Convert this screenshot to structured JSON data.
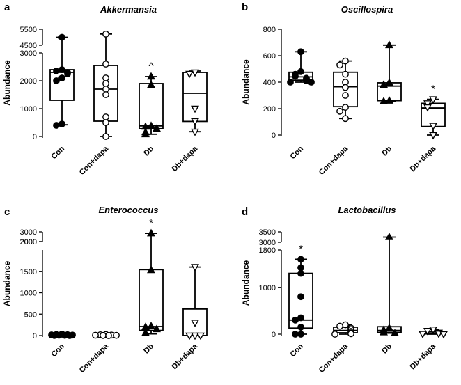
{
  "chart_data": [
    {
      "type": "box",
      "panel": "a",
      "title": "Akkermansia",
      "ylabel": "Abundance",
      "categories": [
        "Con",
        "Con+dapa",
        "Db",
        "Db+dapa"
      ],
      "axis_segments": [
        {
          "range": [
            -100,
            3000
          ],
          "ticks": [
            0,
            1000,
            2000,
            3000
          ],
          "tick_labels": [
            "0",
            "1000",
            "2000",
            "3000"
          ]
        },
        {
          "range": [
            4400,
            5600
          ],
          "ticks": [
            4500,
            5500
          ],
          "tick_labels": [
            "4500",
            "5500"
          ]
        }
      ],
      "annotations": [
        "",
        "",
        "^",
        ""
      ],
      "series": [
        {
          "name": "Con",
          "marker": "circle-filled",
          "whisker_low": 420,
          "q1": 1300,
          "median": 2300,
          "q3": 2400,
          "whisker_high": 5000,
          "points": [
            5000,
            2400,
            2350,
            2300,
            2250,
            2100,
            2000,
            450,
            400
          ]
        },
        {
          "name": "Con+dapa",
          "marker": "circle-open",
          "whisker_low": 0,
          "q1": 550,
          "median": 1700,
          "q3": 2550,
          "whisker_high": 5200,
          "points": [
            5200,
            2600,
            2100,
            1900,
            1700,
            1500,
            700,
            500,
            0
          ]
        },
        {
          "name": "Db",
          "marker": "triangle-up-filled",
          "whisker_low": 80,
          "q1": 280,
          "median": 380,
          "q3": 1900,
          "whisker_high": 2150,
          "points": [
            2150,
            1850,
            380,
            350,
            280,
            150,
            80
          ]
        },
        {
          "name": "Db+dapa",
          "marker": "triangle-down-open",
          "whisker_low": 170,
          "q1": 540,
          "median": 1550,
          "q3": 2300,
          "whisker_high": 2350,
          "points": [
            2300,
            2250,
            1000,
            550,
            170
          ]
        }
      ]
    },
    {
      "type": "box",
      "panel": "b",
      "title": "Oscillospira",
      "ylabel": "Abundance",
      "categories": [
        "Con",
        "Con+dapa",
        "Db",
        "Db+dapa"
      ],
      "axis_segments": [
        {
          "range": [
            -20,
            800
          ],
          "ticks": [
            0,
            200,
            400,
            600,
            800
          ],
          "tick_labels": [
            "0",
            "200",
            "400",
            "600",
            "800"
          ]
        }
      ],
      "annotations": [
        "",
        "",
        "",
        "*"
      ],
      "series": [
        {
          "name": "Con",
          "marker": "circle-filled",
          "whisker_low": 400,
          "q1": 415,
          "median": 440,
          "q3": 475,
          "whisker_high": 630,
          "points": [
            630,
            480,
            460,
            445,
            430,
            420,
            410,
            400,
            400
          ]
        },
        {
          "name": "Con+dapa",
          "marker": "circle-open",
          "whisker_low": 125,
          "q1": 215,
          "median": 365,
          "q3": 475,
          "whisker_high": 560,
          "points": [
            560,
            530,
            460,
            400,
            360,
            300,
            210,
            180,
            125
          ]
        },
        {
          "name": "Db",
          "marker": "triangle-up-filled",
          "whisker_low": 255,
          "q1": 260,
          "median": 370,
          "q3": 395,
          "whisker_high": 680,
          "points": [
            680,
            395,
            380,
            260,
            255
          ]
        },
        {
          "name": "Db+dapa",
          "marker": "triangle-down-open",
          "whisker_low": 0,
          "q1": 65,
          "median": 205,
          "q3": 240,
          "whisker_high": 270,
          "points": [
            270,
            240,
            210,
            70,
            0
          ]
        }
      ]
    },
    {
      "type": "box",
      "panel": "c",
      "title": "Enterococcus",
      "ylabel": "Abundance",
      "categories": [
        "Con",
        "Con+dapa",
        "Db",
        "Db+dapa"
      ],
      "axis_segments": [
        {
          "range": [
            -60,
            2000
          ],
          "ticks": [
            0,
            500,
            1000,
            1500,
            2000
          ],
          "tick_labels": [
            "0",
            "500",
            "1000",
            "1500",
            "2000"
          ]
        },
        {
          "range": [
            1900,
            3100
          ],
          "ticks": [
            2000,
            3000
          ],
          "tick_labels": [
            "2000",
            "3000"
          ]
        }
      ],
      "annotations": [
        "",
        "",
        "*",
        ""
      ],
      "series": [
        {
          "name": "Con",
          "marker": "circle-filled",
          "whisker_low": 0,
          "q1": 5,
          "median": 12,
          "q3": 20,
          "whisker_high": 35,
          "points": [
            35,
            25,
            20,
            15,
            12,
            10,
            5,
            3,
            0
          ]
        },
        {
          "name": "Con+dapa",
          "marker": "circle-open",
          "whisker_low": 0,
          "q1": 3,
          "median": 8,
          "q3": 15,
          "whisker_high": 25,
          "points": [
            25,
            18,
            12,
            8,
            5,
            3,
            0
          ]
        },
        {
          "name": "Db",
          "marker": "triangle-up-filled",
          "whisker_low": 40,
          "q1": 120,
          "median": 210,
          "q3": 1540,
          "whisker_high": 2850,
          "points": [
            2850,
            1530,
            220,
            200,
            150,
            60
          ]
        },
        {
          "name": "Db+dapa",
          "marker": "triangle-down-open",
          "whisker_low": 0,
          "q1": 0,
          "median": 0,
          "q3": 620,
          "whisker_high": 1600,
          "points": [
            1600,
            300,
            0,
            0,
            0
          ]
        }
      ]
    },
    {
      "type": "box",
      "panel": "d",
      "title": "Lactobacillus",
      "ylabel": "Abundance",
      "categories": [
        "Con",
        "Con+dapa",
        "Db",
        "Db+dapa"
      ],
      "axis_segments": [
        {
          "range": [
            -60,
            1800
          ],
          "ticks": [
            0,
            1000,
            1800
          ],
          "tick_labels": [
            "0",
            "1000",
            "1800"
          ]
        },
        {
          "range": [
            2800,
            3600
          ],
          "ticks": [
            3000,
            3500
          ],
          "tick_labels": [
            "3000",
            "3500"
          ]
        }
      ],
      "annotations": [
        "*",
        "",
        "",
        ""
      ],
      "series": [
        {
          "name": "Con",
          "marker": "circle-filled",
          "whisker_low": 0,
          "q1": 130,
          "median": 300,
          "q3": 1300,
          "whisker_high": 1600,
          "points": [
            1600,
            1420,
            1300,
            800,
            350,
            300,
            150,
            0,
            0
          ]
        },
        {
          "name": "Con+dapa",
          "marker": "circle-open",
          "whisker_low": 0,
          "q1": 30,
          "median": 80,
          "q3": 150,
          "whisker_high": 200,
          "points": [
            200,
            170,
            130,
            100,
            60,
            30,
            10,
            0
          ]
        },
        {
          "name": "Db",
          "marker": "triangle-up-filled",
          "whisker_low": 20,
          "q1": 40,
          "median": 80,
          "q3": 160,
          "whisker_high": 3250,
          "points": [
            3250,
            130,
            90,
            40,
            20
          ]
        },
        {
          "name": "Db+dapa",
          "marker": "triangle-down-open",
          "whisker_low": 0,
          "q1": 5,
          "median": 20,
          "q3": 50,
          "whisker_high": 100,
          "points": [
            100,
            70,
            30,
            10,
            5,
            0
          ]
        }
      ]
    }
  ]
}
